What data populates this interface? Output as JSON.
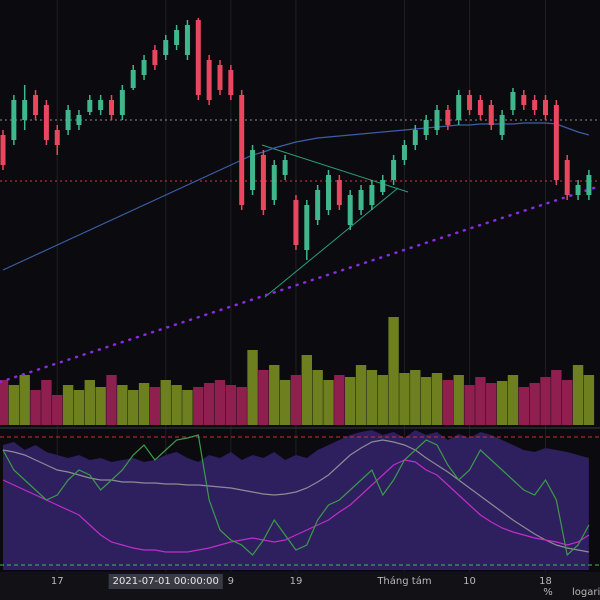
{
  "chart_data": [
    {
      "type": "candlestick",
      "up_color": "#3fb68b",
      "down_color": "#e8475f",
      "ylim": [
        0,
        300
      ],
      "open": [
        165,
        160,
        180,
        205,
        195,
        170,
        170,
        175,
        188,
        190,
        200,
        185,
        212,
        225,
        250,
        245,
        255,
        245,
        280,
        240,
        235,
        230,
        205,
        110,
        145,
        100,
        125,
        100,
        50,
        80,
        90,
        120,
        75,
        90,
        95,
        108,
        120,
        140,
        155,
        165,
        170,
        190,
        180,
        205,
        200,
        195,
        165,
        190,
        205,
        200,
        200,
        195,
        140,
        105,
        105
      ],
      "high": [
        170,
        205,
        215,
        210,
        200,
        175,
        195,
        190,
        205,
        205,
        205,
        215,
        235,
        245,
        255,
        265,
        275,
        280,
        282,
        245,
        240,
        235,
        210,
        155,
        150,
        140,
        145,
        105,
        100,
        115,
        130,
        125,
        110,
        115,
        120,
        125,
        145,
        160,
        175,
        185,
        195,
        195,
        210,
        210,
        205,
        200,
        190,
        212,
        210,
        205,
        205,
        200,
        145,
        120,
        130
      ],
      "low": [
        130,
        155,
        170,
        180,
        155,
        145,
        165,
        170,
        185,
        185,
        180,
        180,
        210,
        220,
        230,
        240,
        250,
        240,
        200,
        195,
        205,
        200,
        90,
        105,
        85,
        95,
        120,
        50,
        40,
        75,
        85,
        90,
        70,
        85,
        90,
        105,
        115,
        135,
        150,
        160,
        165,
        170,
        175,
        185,
        180,
        170,
        160,
        185,
        190,
        185,
        180,
        115,
        100,
        100,
        100
      ],
      "close": [
        135,
        200,
        200,
        185,
        160,
        155,
        190,
        185,
        200,
        200,
        185,
        210,
        230,
        240,
        235,
        260,
        270,
        275,
        205,
        200,
        210,
        205,
        95,
        150,
        90,
        135,
        140,
        55,
        95,
        110,
        125,
        95,
        105,
        110,
        115,
        120,
        140,
        155,
        170,
        180,
        190,
        175,
        205,
        190,
        185,
        175,
        185,
        208,
        195,
        190,
        185,
        120,
        105,
        115,
        125
      ],
      "ma": {
        "color": "#3a5fa8",
        "values": [
          30,
          35,
          40,
          45,
          50,
          55,
          60,
          65,
          70,
          75,
          80,
          85,
          90,
          95,
          100,
          105,
          110,
          115,
          120,
          125,
          130,
          135,
          140,
          145,
          148,
          152,
          155,
          158,
          160,
          162,
          163,
          164,
          165,
          166,
          167,
          168,
          169,
          170,
          171,
          172,
          173,
          174,
          175,
          175,
          176,
          176,
          176,
          176,
          177,
          177,
          177,
          176,
          172,
          168,
          165
        ]
      },
      "hlines": [
        {
          "value": 180,
          "color": "#8a8a8a"
        },
        {
          "value": 119,
          "color": "#e0303f"
        }
      ],
      "grid": true,
      "xticks": [
        {
          "value": 5,
          "label": "17"
        },
        {
          "value": 15,
          "label": "2021-07-01 00:00:00"
        },
        {
          "value": 21,
          "label": "9"
        },
        {
          "value": 27,
          "label": "19"
        },
        {
          "value": 37,
          "label": "Tháng tám"
        },
        {
          "value": 43,
          "label": "10"
        },
        {
          "value": 50,
          "label": "18"
        }
      ]
    },
    {
      "type": "bar",
      "up_color": "#6e7f1f",
      "down_color": "#8e1f4f",
      "ylim": [
        0,
        120
      ],
      "values": [
        45,
        40,
        50,
        35,
        45,
        30,
        40,
        35,
        45,
        38,
        50,
        40,
        35,
        42,
        38,
        45,
        40,
        35,
        38,
        42,
        45,
        40,
        38,
        75,
        55,
        60,
        45,
        50,
        70,
        55,
        45,
        50,
        48,
        60,
        55,
        50,
        108,
        52,
        55,
        48,
        52,
        45,
        50,
        40,
        48,
        42,
        44,
        50,
        38,
        42,
        48,
        55,
        45,
        60,
        50
      ]
    },
    {
      "type": "line",
      "ylim": [
        0,
        140
      ],
      "area": {
        "color": "#2e1f5e",
        "values": [
          125,
          128,
          120,
          125,
          118,
          115,
          112,
          115,
          110,
          112,
          108,
          110,
          112,
          108,
          110,
          115,
          118,
          112,
          108,
          115,
          112,
          118,
          110,
          115,
          112,
          118,
          110,
          115,
          112,
          120,
          125,
          130,
          135,
          138,
          140,
          135,
          138,
          132,
          140,
          135,
          138,
          130,
          136,
          132,
          138,
          135,
          130,
          125,
          120,
          118,
          122,
          120,
          118,
          115,
          112
        ]
      },
      "series": [
        {
          "color": "#8c8c96",
          "values": [
            120,
            118,
            115,
            110,
            105,
            100,
            98,
            95,
            92,
            90,
            90,
            88,
            88,
            87,
            87,
            86,
            86,
            85,
            85,
            84,
            83,
            82,
            80,
            78,
            76,
            75,
            76,
            78,
            82,
            88,
            95,
            105,
            115,
            122,
            128,
            130,
            128,
            125,
            120,
            112,
            105,
            98,
            90,
            82,
            74,
            66,
            58,
            50,
            43,
            36,
            30,
            25,
            22,
            20,
            18
          ]
        },
        {
          "color": "#c02ec8",
          "values": [
            90,
            85,
            80,
            75,
            70,
            65,
            60,
            55,
            45,
            35,
            28,
            25,
            22,
            20,
            20,
            18,
            18,
            18,
            20,
            22,
            25,
            28,
            30,
            32,
            30,
            28,
            30,
            35,
            40,
            45,
            50,
            58,
            65,
            75,
            85,
            95,
            105,
            110,
            108,
            100,
            95,
            85,
            75,
            65,
            55,
            48,
            42,
            38,
            35,
            32,
            30,
            28,
            25,
            28,
            35
          ]
        },
        {
          "color": "#3c9a4a",
          "values": [
            120,
            100,
            90,
            80,
            70,
            75,
            90,
            100,
            95,
            80,
            90,
            100,
            115,
            125,
            110,
            120,
            130,
            132,
            135,
            70,
            40,
            30,
            25,
            15,
            30,
            50,
            35,
            20,
            25,
            50,
            65,
            70,
            80,
            90,
            100,
            75,
            90,
            110,
            120,
            130,
            125,
            105,
            90,
            100,
            120,
            110,
            100,
            90,
            80,
            75,
            90,
            70,
            15,
            25,
            45
          ]
        }
      ],
      "levels": [
        {
          "value": 133,
          "color": "#d8283a"
        },
        {
          "value": 5,
          "color": "#3fbf4a"
        }
      ]
    }
  ],
  "footer": [
    "%",
    "logari"
  ]
}
